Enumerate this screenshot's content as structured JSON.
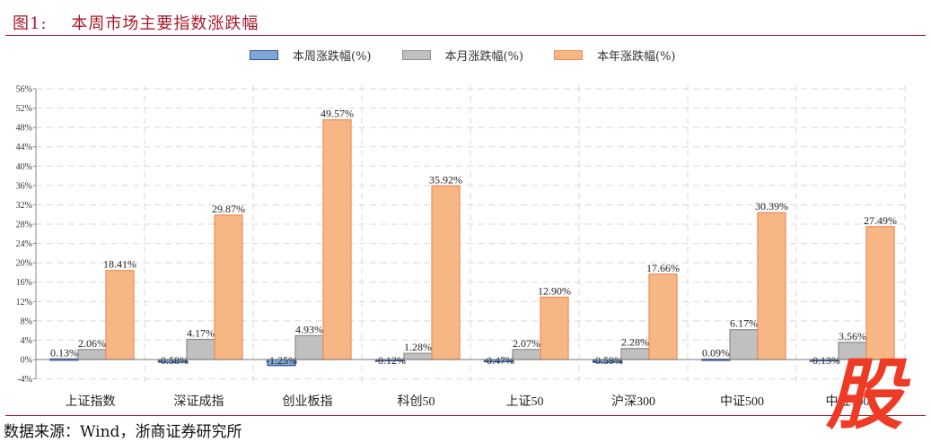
{
  "header": {
    "figure_label": "图1:",
    "title": "本周市场主要指数涨跌幅"
  },
  "legend": [
    {
      "label": "本周涨跌幅(%)",
      "color": "#7fa7d6",
      "border": "#2f4f9c"
    },
    {
      "label": "本月涨跌幅(%)",
      "color": "#c0c0c0",
      "border": "#8c8c8c"
    },
    {
      "label": "本年涨跌幅(%)",
      "color": "#f7b784",
      "border": "#ee8a5a"
    }
  ],
  "footer": {
    "source": "数据来源：Wind，浙商证券研究所"
  },
  "watermark": "股",
  "chart_data": {
    "type": "bar",
    "title": "本周市场主要指数涨跌幅",
    "xlabel": "",
    "ylabel": "",
    "ylim": [
      -4,
      56
    ],
    "ytick_step": 4,
    "yticks": [
      "-4%",
      "0%",
      "4%",
      "8%",
      "12%",
      "16%",
      "20%",
      "24%",
      "28%",
      "32%",
      "36%",
      "40%",
      "44%",
      "48%",
      "52%",
      "56%"
    ],
    "grid": true,
    "legend_position": "top",
    "categories": [
      "上证指数",
      "深证成指",
      "创业板指",
      "科创50",
      "上证50",
      "沪深300",
      "中证500",
      "中证1000"
    ],
    "series": [
      {
        "name": "本周涨跌幅(%)",
        "values": [
          0.13,
          -0.58,
          -1.25,
          -0.12,
          -0.47,
          -0.59,
          0.09,
          -0.13
        ],
        "labels": [
          "0.13%",
          "-0.58%",
          "-1.25%",
          "-0.12%",
          "-0.47%",
          "-0.59%",
          "0.09%",
          "-0.13%"
        ]
      },
      {
        "name": "本月涨跌幅(%)",
        "values": [
          2.06,
          4.17,
          4.93,
          1.28,
          2.07,
          2.28,
          6.17,
          3.56
        ],
        "labels": [
          "2.06%",
          "4.17%",
          "4.93%",
          "1.28%",
          "2.07%",
          "2.28%",
          "6.17%",
          "3.56%"
        ]
      },
      {
        "name": "本年涨跌幅(%)",
        "values": [
          18.41,
          29.87,
          49.57,
          35.92,
          12.9,
          17.66,
          30.39,
          27.49
        ],
        "labels": [
          "18.41%",
          "29.87%",
          "49.57%",
          "35.92%",
          "12.90%",
          "17.66%",
          "30.39%",
          "27.49%"
        ]
      }
    ]
  }
}
